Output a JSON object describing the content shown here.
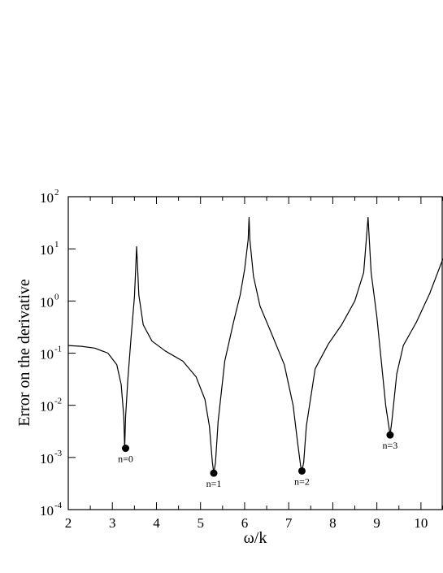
{
  "chart_data": {
    "type": "line",
    "xlabel": "ω/k",
    "ylabel": "Error on the derivative",
    "xlim": [
      2,
      10.5
    ],
    "ylim": [
      0.0001,
      100
    ],
    "yscale": "log",
    "grid": false,
    "x_ticks": [
      2,
      3,
      4,
      5,
      6,
      7,
      8,
      9,
      10
    ],
    "y_ticks": [
      {
        "base": "10",
        "exp": "-4",
        "value": 0.0001
      },
      {
        "base": "10",
        "exp": "-3",
        "value": 0.001
      },
      {
        "base": "10",
        "exp": "-2",
        "value": 0.01
      },
      {
        "base": "10",
        "exp": "-1",
        "value": 0.1
      },
      {
        "base": "10",
        "exp": "0",
        "value": 1
      },
      {
        "base": "10",
        "exp": "1",
        "value": 10
      },
      {
        "base": "10",
        "exp": "2",
        "value": 100
      }
    ],
    "series": [
      {
        "color": "#000000",
        "points": [
          [
            2.0,
            0.14
          ],
          [
            2.3,
            0.135
          ],
          [
            2.6,
            0.125
          ],
          [
            2.9,
            0.1
          ],
          [
            3.1,
            0.06
          ],
          [
            3.2,
            0.025
          ],
          [
            3.26,
            0.006
          ],
          [
            3.28,
            0.0015
          ],
          [
            3.3,
            0.006
          ],
          [
            3.35,
            0.03
          ],
          [
            3.42,
            0.18
          ],
          [
            3.5,
            1.2
          ],
          [
            3.55,
            11
          ],
          [
            3.6,
            1.3
          ],
          [
            3.7,
            0.35
          ],
          [
            3.9,
            0.17
          ],
          [
            4.2,
            0.11
          ],
          [
            4.6,
            0.07
          ],
          [
            4.9,
            0.035
          ],
          [
            5.1,
            0.013
          ],
          [
            5.2,
            0.004
          ],
          [
            5.27,
            0.0008
          ],
          [
            5.3,
            0.0005
          ],
          [
            5.34,
            0.0008
          ],
          [
            5.4,
            0.005
          ],
          [
            5.55,
            0.07
          ],
          [
            5.75,
            0.4
          ],
          [
            5.9,
            1.3
          ],
          [
            6.0,
            4
          ],
          [
            6.08,
            15
          ],
          [
            6.1,
            40
          ],
          [
            6.12,
            15
          ],
          [
            6.2,
            3
          ],
          [
            6.35,
            0.8
          ],
          [
            6.6,
            0.25
          ],
          [
            6.9,
            0.06
          ],
          [
            7.1,
            0.01
          ],
          [
            7.2,
            0.002
          ],
          [
            7.27,
            0.0007
          ],
          [
            7.3,
            0.00055
          ],
          [
            7.34,
            0.0008
          ],
          [
            7.4,
            0.004
          ],
          [
            7.6,
            0.05
          ],
          [
            7.9,
            0.15
          ],
          [
            8.2,
            0.35
          ],
          [
            8.5,
            1
          ],
          [
            8.7,
            3.5
          ],
          [
            8.8,
            40
          ],
          [
            8.87,
            3.5
          ],
          [
            9.0,
            0.5
          ],
          [
            9.1,
            0.07
          ],
          [
            9.2,
            0.01
          ],
          [
            9.27,
            0.004
          ],
          [
            9.3,
            0.0027
          ],
          [
            9.34,
            0.005
          ],
          [
            9.45,
            0.04
          ],
          [
            9.6,
            0.14
          ],
          [
            9.9,
            0.4
          ],
          [
            10.2,
            1.4
          ],
          [
            10.5,
            6.5
          ]
        ]
      }
    ],
    "annotations": [
      {
        "label": "n=0",
        "x": 3.3,
        "y": 0.0015
      },
      {
        "label": "n=1",
        "x": 5.3,
        "y": 0.0005
      },
      {
        "label": "n=2",
        "x": 7.3,
        "y": 0.00055
      },
      {
        "label": "n=3",
        "x": 9.3,
        "y": 0.0027
      }
    ]
  }
}
